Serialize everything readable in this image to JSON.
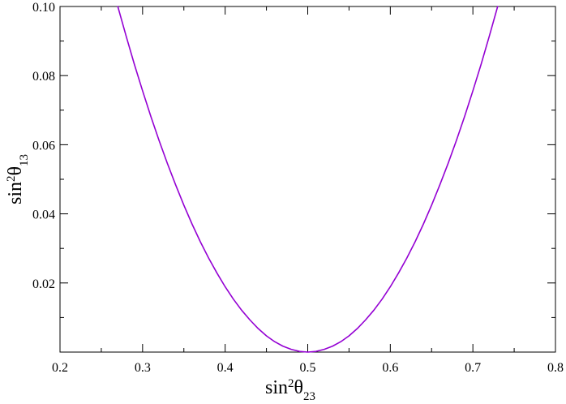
{
  "chart_data": {
    "type": "line",
    "title": "",
    "xlabel": {
      "base": "sin",
      "sup": "2",
      "symbol": "θ",
      "sub": "23"
    },
    "ylabel": {
      "base": "sin",
      "sup": "2",
      "symbol": "θ",
      "sub": "13"
    },
    "xlim": [
      0.2,
      0.8
    ],
    "ylim": [
      0.0,
      0.1
    ],
    "xticks": [
      "0.2",
      "0.3",
      "0.4",
      "0.5",
      "0.6",
      "0.7",
      "0.8"
    ],
    "yticks": [
      "0.02",
      "0.04",
      "0.06",
      "0.08",
      "0.10"
    ],
    "grid": false,
    "series": [
      {
        "color": "#9400d3",
        "x": [
          0.27,
          0.28,
          0.29,
          0.3,
          0.31,
          0.32,
          0.33,
          0.34,
          0.35,
          0.36,
          0.37,
          0.38,
          0.39,
          0.4,
          0.41,
          0.42,
          0.43,
          0.44,
          0.45,
          0.46,
          0.47,
          0.48,
          0.49,
          0.5,
          0.51,
          0.52,
          0.53,
          0.54,
          0.55,
          0.56,
          0.57,
          0.58,
          0.59,
          0.6,
          0.61,
          0.62,
          0.63,
          0.64,
          0.65,
          0.66,
          0.67,
          0.68,
          0.69,
          0.7,
          0.71,
          0.72,
          0.73
        ],
        "y": [
          0.1,
          0.0915,
          0.0833,
          0.0756,
          0.0682,
          0.0612,
          0.0546,
          0.0484,
          0.0425,
          0.037,
          0.0319,
          0.0272,
          0.0229,
          0.0189,
          0.0153,
          0.0121,
          0.0093,
          0.0068,
          0.0047,
          0.003,
          0.0017,
          0.0008,
          0.0002,
          0.0,
          0.0002,
          0.0008,
          0.0017,
          0.003,
          0.0047,
          0.0068,
          0.0093,
          0.0121,
          0.0153,
          0.0189,
          0.0229,
          0.0272,
          0.0319,
          0.037,
          0.0425,
          0.0484,
          0.0546,
          0.0612,
          0.0682,
          0.0756,
          0.0833,
          0.0915,
          0.1
        ]
      }
    ]
  }
}
